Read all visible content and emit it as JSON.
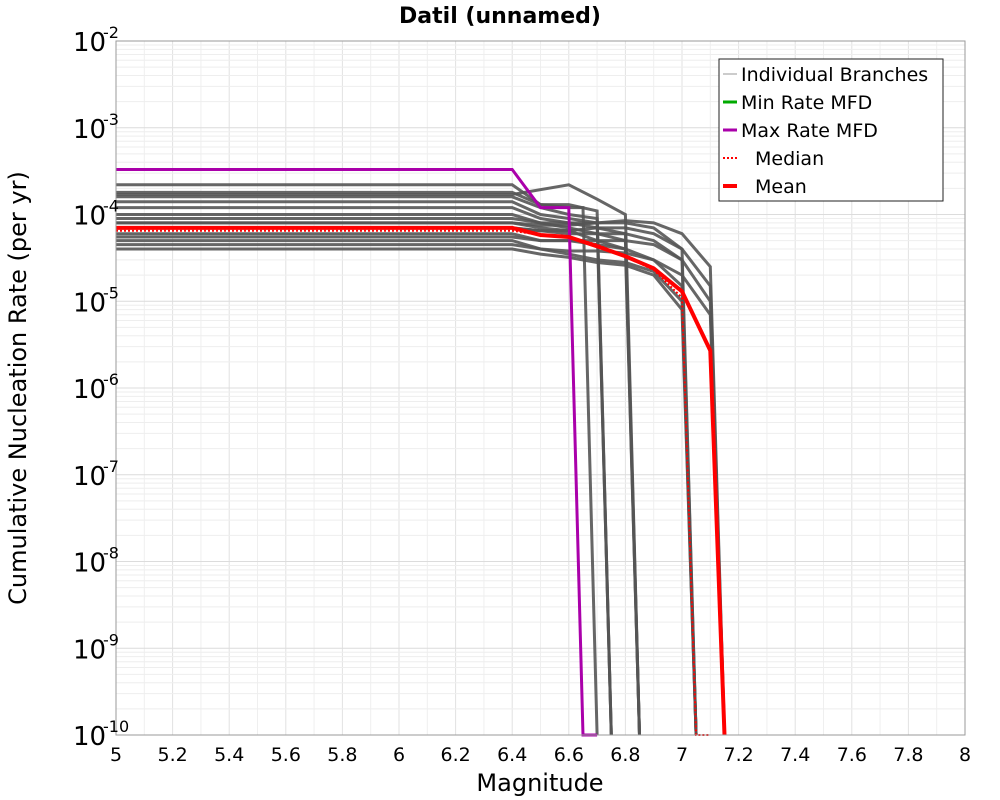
{
  "chart_data": {
    "type": "line",
    "title": "Datil (unnamed)",
    "xlabel": "Magnitude",
    "ylabel": "Cumulative Nucleation Rate (per yr)",
    "xlim": [
      5,
      8
    ],
    "ylim": [
      1e-10,
      0.01
    ],
    "y_scale": "log",
    "grid": true,
    "legend_position": "top-right",
    "x_ticks": [
      "5",
      "5.2",
      "5.4",
      "5.6",
      "5.8",
      "6",
      "6.2",
      "6.4",
      "6.6",
      "6.8",
      "7",
      "7.2",
      "7.4",
      "7.6",
      "7.8",
      "8"
    ],
    "y_ticks": [
      {
        "base": "10",
        "exp": "-2"
      },
      {
        "base": "10",
        "exp": "-3"
      },
      {
        "base": "10",
        "exp": "-4"
      },
      {
        "base": "10",
        "exp": "-5"
      },
      {
        "base": "10",
        "exp": "-6"
      },
      {
        "base": "10",
        "exp": "-7"
      },
      {
        "base": "10",
        "exp": "-8"
      },
      {
        "base": "10",
        "exp": "-9"
      },
      {
        "base": "10",
        "exp": "-10"
      }
    ],
    "series": [
      {
        "name": "Individual Branches",
        "color": "#555555",
        "style": "solid",
        "x": [],
        "y": []
      },
      {
        "name": "Min Rate MFD",
        "color": "#00aa00",
        "style": "solid",
        "x": [],
        "y": []
      },
      {
        "name": "Max Rate MFD",
        "color": "#aa00aa",
        "style": "solid",
        "x": [
          5.0,
          6.4,
          6.5,
          6.6,
          6.65,
          6.7
        ],
        "y": [
          0.00033,
          0.00033,
          0.00012,
          0.00012,
          1e-10,
          1e-10
        ]
      },
      {
        "name": "Median",
        "color": "#ff0000",
        "style": "dotted",
        "x": [
          5.0,
          6.4,
          6.5,
          6.6,
          6.7,
          6.8,
          6.9,
          7.0,
          7.05,
          7.1
        ],
        "y": [
          6.5e-05,
          6.5e-05,
          5.8e-05,
          5.5e-05,
          4.5e-05,
          3.3e-05,
          2.3e-05,
          1.1e-05,
          1e-10,
          1e-10
        ]
      },
      {
        "name": "Mean",
        "color": "#ff0000",
        "style": "solid",
        "x": [
          5.0,
          6.4,
          6.5,
          6.6,
          6.7,
          6.8,
          6.9,
          7.0,
          7.1,
          7.15
        ],
        "y": [
          7e-05,
          7e-05,
          5.8e-05,
          5.5e-05,
          4.3e-05,
          3.3e-05,
          2.4e-05,
          1.3e-05,
          2.7e-06,
          1e-10
        ]
      }
    ],
    "branches": [
      {
        "x": [
          5.0,
          6.4,
          6.5,
          6.6,
          6.65,
          6.7
        ],
        "y": [
          0.00022,
          0.00022,
          0.00013,
          0.00012,
          0.00012,
          1e-10
        ]
      },
      {
        "x": [
          5.0,
          6.4,
          6.5,
          6.6,
          6.7,
          6.75
        ],
        "y": [
          0.00018,
          0.00018,
          0.00013,
          0.00013,
          0.00011,
          1e-10
        ]
      },
      {
        "x": [
          5.0,
          6.4,
          6.5,
          6.6,
          6.7,
          6.75
        ],
        "y": [
          0.00016,
          0.00016,
          0.00012,
          0.0001,
          9e-05,
          1e-10
        ]
      },
      {
        "x": [
          5.0,
          6.4,
          6.5,
          6.6,
          6.7,
          6.75
        ],
        "y": [
          0.00014,
          0.00014,
          0.0001,
          9e-05,
          8e-05,
          1e-10
        ]
      },
      {
        "x": [
          5.0,
          6.4,
          6.6,
          6.7,
          6.8,
          6.85
        ],
        "y": [
          0.00017,
          0.00017,
          0.00022,
          0.00015,
          0.0001,
          1e-10
        ]
      },
      {
        "x": [
          5.0,
          6.4,
          6.5,
          6.6,
          6.7,
          6.8,
          6.85
        ],
        "y": [
          0.00012,
          0.00012,
          9e-05,
          8e-05,
          7e-05,
          6e-05,
          1e-10
        ]
      },
      {
        "x": [
          5.0,
          6.4,
          6.5,
          6.6,
          6.7,
          6.8,
          6.85
        ],
        "y": [
          0.0001,
          0.0001,
          8e-05,
          7e-05,
          6e-05,
          5e-05,
          1e-10
        ]
      },
      {
        "x": [
          5.0,
          6.4,
          6.5,
          6.6,
          6.7,
          6.8,
          6.85
        ],
        "y": [
          8e-05,
          8e-05,
          7e-05,
          6.5e-05,
          5e-05,
          4e-05,
          1e-10
        ]
      },
      {
        "x": [
          5.0,
          6.4,
          6.5,
          6.6,
          6.7,
          6.8,
          6.9,
          7.0,
          7.05
        ],
        "y": [
          9e-05,
          9e-05,
          8e-05,
          8e-05,
          8e-05,
          8e-05,
          7e-05,
          4e-05,
          1e-10
        ]
      },
      {
        "x": [
          5.0,
          6.4,
          6.5,
          6.6,
          6.7,
          6.8,
          6.9,
          7.0,
          7.05
        ],
        "y": [
          7e-05,
          7e-05,
          6.5e-05,
          6e-05,
          6e-05,
          6e-05,
          5e-05,
          3e-05,
          1e-10
        ]
      },
      {
        "x": [
          5.0,
          6.4,
          6.5,
          6.6,
          6.7,
          6.8,
          6.9,
          7.0,
          7.05
        ],
        "y": [
          6e-05,
          6e-05,
          5e-05,
          5e-05,
          4.5e-05,
          4e-05,
          3e-05,
          1.5e-05,
          1e-10
        ]
      },
      {
        "x": [
          5.0,
          6.4,
          6.5,
          6.6,
          6.7,
          6.8,
          6.9,
          7.0,
          7.05
        ],
        "y": [
          5e-05,
          5e-05,
          4e-05,
          3.5e-05,
          3e-05,
          2.8e-05,
          2.2e-05,
          1e-05,
          1e-10
        ]
      },
      {
        "x": [
          5.0,
          6.4,
          6.5,
          6.6,
          6.7,
          6.8,
          6.9,
          7.0,
          7.05
        ],
        "y": [
          4e-05,
          4e-05,
          3.5e-05,
          3.2e-05,
          2.8e-05,
          2.6e-05,
          2e-05,
          8e-06,
          1e-10
        ]
      },
      {
        "x": [
          5.0,
          6.4,
          6.5,
          6.6,
          6.7,
          6.8,
          6.9,
          7.0,
          7.1,
          7.15
        ],
        "y": [
          8e-05,
          8e-05,
          7.5e-05,
          7.5e-05,
          8e-05,
          8.5e-05,
          8e-05,
          6e-05,
          2.5e-05,
          1e-10
        ]
      },
      {
        "x": [
          5.0,
          6.4,
          6.5,
          6.6,
          6.7,
          6.8,
          6.9,
          7.0,
          7.1,
          7.15
        ],
        "y": [
          7e-05,
          7e-05,
          6.5e-05,
          6.5e-05,
          7e-05,
          7e-05,
          6e-05,
          4e-05,
          1.5e-05,
          1e-10
        ]
      },
      {
        "x": [
          5.0,
          6.4,
          6.5,
          6.6,
          6.7,
          6.8,
          6.9,
          7.0,
          7.1,
          7.15
        ],
        "y": [
          5.5e-05,
          5.5e-05,
          5e-05,
          5e-05,
          5e-05,
          5e-05,
          4.5e-05,
          3e-05,
          1e-05,
          1e-10
        ]
      },
      {
        "x": [
          5.0,
          6.4,
          6.5,
          6.6,
          6.7,
          6.8,
          6.9,
          7.0,
          7.1,
          7.15
        ],
        "y": [
          4.5e-05,
          4.5e-05,
          4e-05,
          3.8e-05,
          3.8e-05,
          3.6e-05,
          3e-05,
          2e-05,
          7e-06,
          1e-10
        ]
      }
    ]
  }
}
